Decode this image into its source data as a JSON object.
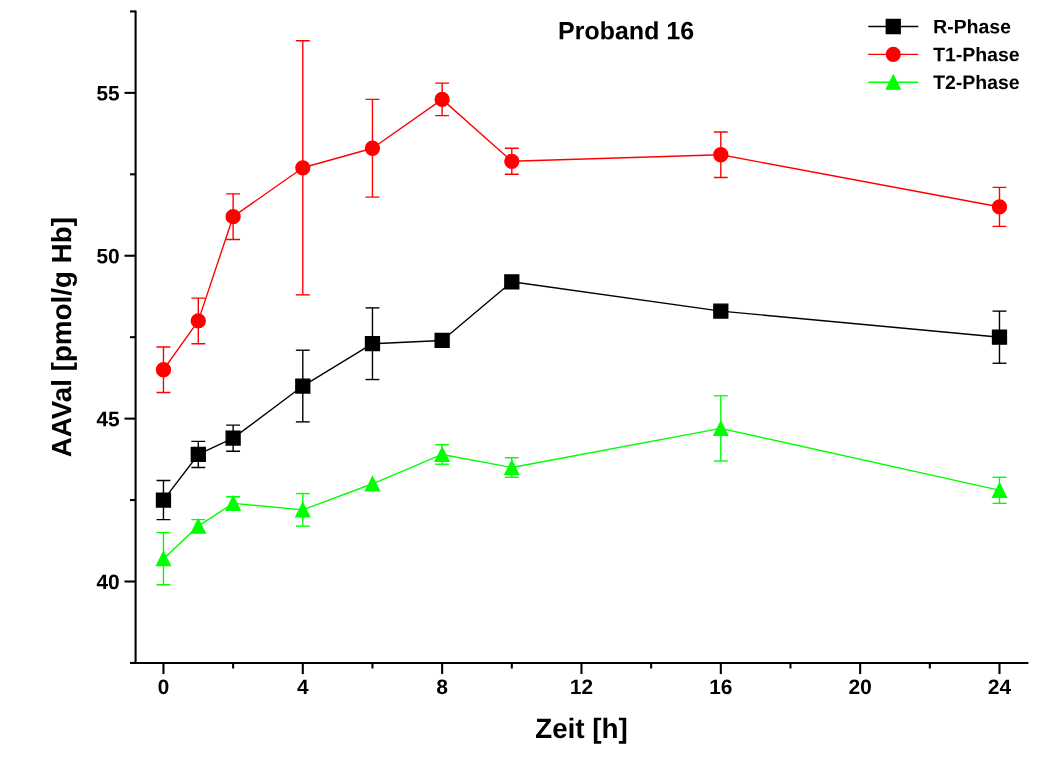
{
  "chart_data": {
    "type": "line",
    "title": "Proband 16",
    "xlabel": "Zeit [h]",
    "ylabel": "AAVal [pmol/g Hb]",
    "x": [
      0,
      1,
      2,
      4,
      6,
      8,
      10,
      16,
      24
    ],
    "series": [
      {
        "name": "R-Phase",
        "color": "#000000",
        "marker": "square",
        "values": [
          42.5,
          43.9,
          44.4,
          46.0,
          47.3,
          47.4,
          49.2,
          48.3,
          47.5
        ],
        "errors": [
          0.6,
          0.4,
          0.4,
          1.1,
          1.1,
          null,
          null,
          null,
          0.8
        ]
      },
      {
        "name": "T1-Phase",
        "color": "#ff0000",
        "marker": "circle",
        "values": [
          46.5,
          48.0,
          51.2,
          52.7,
          53.3,
          54.8,
          52.9,
          53.1,
          51.5
        ],
        "errors": [
          0.7,
          0.7,
          0.7,
          3.9,
          1.5,
          0.5,
          0.4,
          0.7,
          0.6
        ]
      },
      {
        "name": "T2-Phase",
        "color": "#00ff00",
        "marker": "triangle",
        "values": [
          40.7,
          41.7,
          42.4,
          42.2,
          43.0,
          43.9,
          43.5,
          44.7,
          42.8
        ],
        "errors": [
          0.8,
          0.2,
          0.2,
          0.5,
          null,
          0.3,
          0.3,
          1.0,
          0.4
        ]
      }
    ],
    "xlim": [
      -0.8,
      24.8
    ],
    "xticks": [
      0,
      4,
      8,
      12,
      16,
      20,
      24
    ],
    "ylim": [
      37.5,
      57.5
    ],
    "yticks": [
      40,
      45,
      50,
      55
    ],
    "grid": false,
    "legend": "top right",
    "line_style": "solid"
  }
}
